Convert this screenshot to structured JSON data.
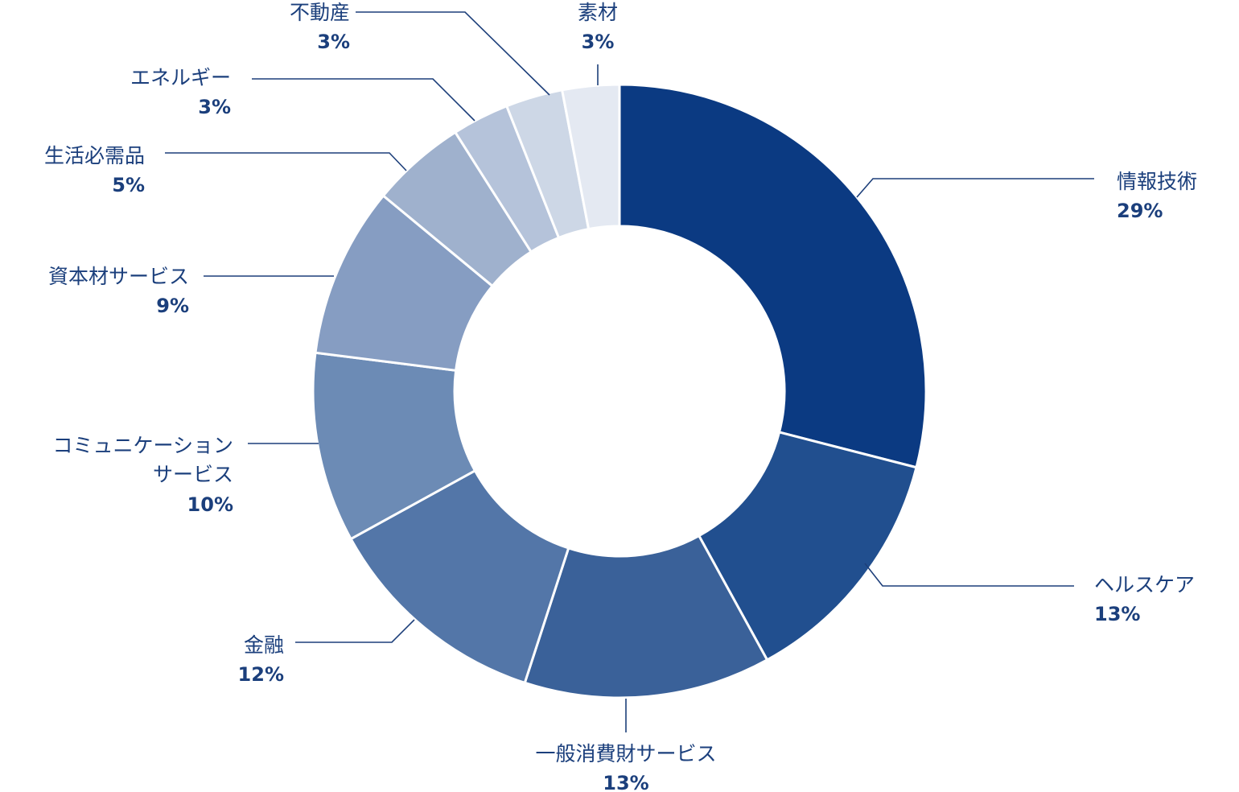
{
  "chart_data": {
    "type": "donut",
    "categories": [
      "情報技術",
      "ヘルスケア",
      "一般消費財サービス",
      "金融",
      "コミュニケーション\nサービス",
      "資本材サービス",
      "生活必需品",
      "エネルギー",
      "不動産",
      "素材"
    ],
    "values": [
      29,
      13,
      13,
      12,
      10,
      9,
      5,
      3,
      3,
      3
    ],
    "value_labels": [
      "29%",
      "13%",
      "13%",
      "12%",
      "10%",
      "9%",
      "5%",
      "3%",
      "3%",
      "3%"
    ],
    "colors": [
      "#0b3a82",
      "#214f8f",
      "#3a6199",
      "#5376a8",
      "#6c8bb5",
      "#869dc2",
      "#9fb1cd",
      "#b5c3da",
      "#cdd7e6",
      "#e4e9f2"
    ]
  }
}
